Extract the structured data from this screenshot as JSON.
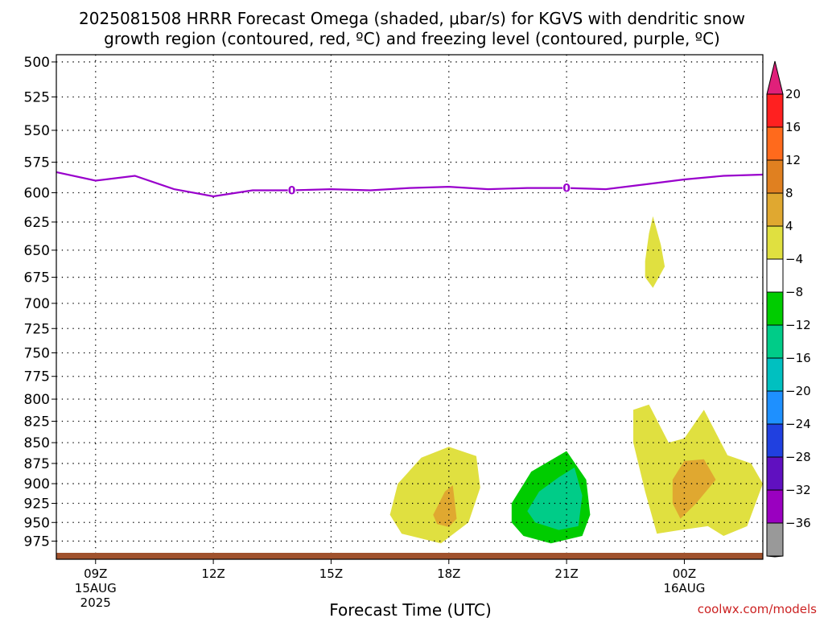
{
  "chart_data": {
    "type": "time-height contour",
    "title_line1": "2025081508 HRRR Forecast Omega (shaded, μbar/s) for KGVS with dendritic snow",
    "title_line2": "growth region (contoured, red, ºC) and freezing level (contoured, purple, ºC)",
    "xlabel": "Forecast Time (UTC)",
    "credit": "coolwx.com/models",
    "y_axis": {
      "unit": "hPa",
      "ticks": [
        500,
        525,
        550,
        575,
        600,
        625,
        650,
        675,
        700,
        725,
        750,
        775,
        800,
        825,
        850,
        875,
        900,
        925,
        950,
        975
      ],
      "range": [
        1000,
        495
      ],
      "scale": "log"
    },
    "x_axis": {
      "range_hours": [
        8,
        26
      ],
      "ticks": [
        {
          "hour": 9,
          "label": "09Z",
          "sub1": "15AUG",
          "sub2": "2025"
        },
        {
          "hour": 12,
          "label": "12Z",
          "sub1": "",
          "sub2": ""
        },
        {
          "hour": 15,
          "label": "15Z",
          "sub1": "",
          "sub2": ""
        },
        {
          "hour": 18,
          "label": "18Z",
          "sub1": "",
          "sub2": ""
        },
        {
          "hour": 21,
          "label": "21Z",
          "sub1": "",
          "sub2": ""
        },
        {
          "hour": 24,
          "label": "00Z",
          "sub1": "16AUG",
          "sub2": ""
        }
      ]
    },
    "freezing_level": {
      "color": "#9900cc",
      "label": "0",
      "label_hours": [
        14,
        21
      ],
      "points": [
        [
          8,
          583
        ],
        [
          9,
          590
        ],
        [
          10,
          586
        ],
        [
          11,
          597
        ],
        [
          12,
          603
        ],
        [
          13,
          598
        ],
        [
          14,
          598
        ],
        [
          15,
          597
        ],
        [
          16,
          598
        ],
        [
          17,
          596
        ],
        [
          18,
          595
        ],
        [
          19,
          597
        ],
        [
          20,
          596
        ],
        [
          21,
          596
        ],
        [
          22,
          597
        ],
        [
          23,
          593
        ],
        [
          24,
          589
        ],
        [
          25,
          586
        ],
        [
          26,
          585
        ]
      ]
    },
    "omega_regions": [
      {
        "level": "4 to 8",
        "color": "#e0e040",
        "points": [
          [
            16.5,
            940
          ],
          [
            16.7,
            900
          ],
          [
            17.3,
            868
          ],
          [
            18.0,
            855
          ],
          [
            18.7,
            866
          ],
          [
            18.8,
            905
          ],
          [
            18.5,
            950
          ],
          [
            17.8,
            978
          ],
          [
            16.8,
            965
          ]
        ]
      },
      {
        "level": "8 to 12",
        "color": "#e0a830",
        "points": [
          [
            17.6,
            940
          ],
          [
            17.9,
            910
          ],
          [
            18.1,
            902
          ],
          [
            18.2,
            945
          ],
          [
            18.0,
            956
          ],
          [
            17.7,
            952
          ]
        ]
      },
      {
        "level": "-4 to -8",
        "color": "#00cc00",
        "points": [
          [
            19.6,
            925
          ],
          [
            20.1,
            885
          ],
          [
            21.0,
            860
          ],
          [
            21.5,
            895
          ],
          [
            21.6,
            940
          ],
          [
            21.4,
            968
          ],
          [
            20.6,
            978
          ],
          [
            19.9,
            968
          ],
          [
            19.6,
            950
          ]
        ]
      },
      {
        "level": "-8 to -12",
        "color": "#00cc88",
        "points": [
          [
            20.0,
            935
          ],
          [
            20.3,
            910
          ],
          [
            20.8,
            892
          ],
          [
            21.2,
            880
          ],
          [
            21.4,
            915
          ],
          [
            21.3,
            955
          ],
          [
            20.8,
            960
          ],
          [
            20.2,
            950
          ]
        ]
      },
      {
        "level": "4 to 8",
        "color": "#e0e040",
        "points": [
          [
            22.7,
            812
          ],
          [
            23.1,
            806
          ],
          [
            23.6,
            850
          ],
          [
            24.0,
            845
          ],
          [
            24.5,
            812
          ],
          [
            25.1,
            865
          ],
          [
            25.7,
            875
          ],
          [
            26.0,
            900
          ],
          [
            25.6,
            955
          ],
          [
            25.0,
            968
          ],
          [
            24.6,
            955
          ],
          [
            23.9,
            960
          ],
          [
            23.3,
            965
          ],
          [
            23.0,
            910
          ],
          [
            22.7,
            850
          ]
        ]
      },
      {
        "level": "8 to 12",
        "color": "#e0a830",
        "points": [
          [
            23.7,
            895
          ],
          [
            24.0,
            872
          ],
          [
            24.5,
            870
          ],
          [
            24.8,
            895
          ],
          [
            24.3,
            925
          ],
          [
            23.9,
            945
          ],
          [
            23.7,
            925
          ]
        ]
      },
      {
        "level": "4 to 8",
        "color": "#e0e040",
        "points": [
          [
            23.0,
            660
          ],
          [
            23.1,
            635
          ],
          [
            23.2,
            620
          ],
          [
            23.4,
            645
          ],
          [
            23.5,
            665
          ],
          [
            23.2,
            685
          ],
          [
            23.0,
            675
          ]
        ]
      }
    ],
    "colorbar": {
      "labels": [
        "20",
        "16",
        "12",
        "8",
        "4",
        "-4",
        "-8",
        "-12",
        "-16",
        "-20",
        "-24",
        "-28",
        "-32",
        "-36"
      ],
      "colors": [
        "#ff2020",
        "#ff6a1c",
        "#e08020",
        "#e0a830",
        "#e0e040",
        "#ffffff",
        "#00cc00",
        "#00cc88",
        "#00c0c0",
        "#1e90ff",
        "#2040e0",
        "#6010c0",
        "#9a00c0",
        "#999999"
      ],
      "top_cap": "#e0207a",
      "bottom_cap": "#000000"
    },
    "surface_color": "#a0522d"
  }
}
